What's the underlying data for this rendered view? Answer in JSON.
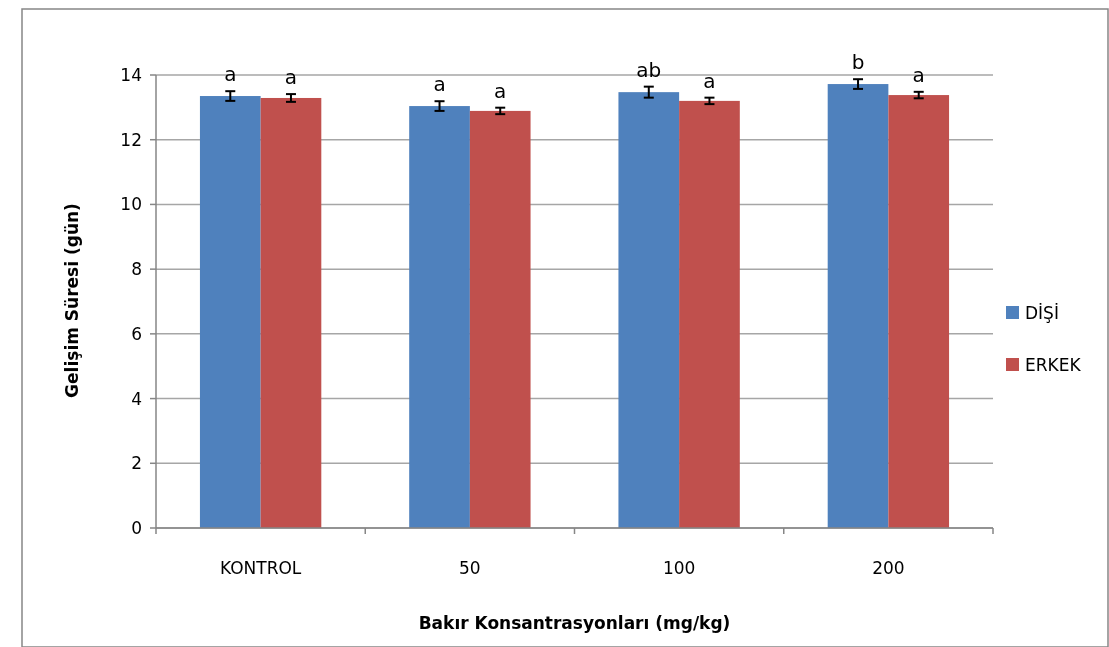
{
  "chart_data": {
    "type": "bar",
    "xlabel": "Bakır Konsantrasyonları (mg/kg)",
    "ylabel": "Gelişim Süresi (gün)",
    "categories": [
      "KONTROL",
      "50",
      "100",
      "200"
    ],
    "series": [
      {
        "name": "DİŞİ",
        "color": "#4f81bd",
        "values": [
          13.35,
          13.04,
          13.47,
          13.72
        ],
        "errors": [
          0.15,
          0.15,
          0.17,
          0.15
        ]
      },
      {
        "name": "ERKEK",
        "color": "#c0504d",
        "values": [
          13.29,
          12.89,
          13.2,
          13.38
        ],
        "errors": [
          0.12,
          0.1,
          0.1,
          0.1
        ]
      }
    ],
    "ylim": [
      0,
      14
    ],
    "yticks": [
      0,
      2,
      4,
      6,
      8,
      10,
      12,
      14
    ],
    "grid": "y",
    "legend": "right",
    "annotations": [
      "a",
      "a",
      "a",
      "a",
      "ab",
      "a",
      "b",
      "a"
    ]
  }
}
